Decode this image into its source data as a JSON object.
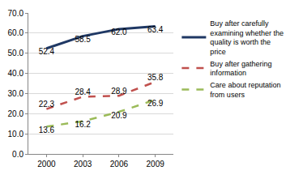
{
  "chart_data": {
    "type": "line",
    "categories": [
      "2000",
      "2003",
      "2006",
      "2009"
    ],
    "series": [
      {
        "name": "Buy after carefully examining whether the quality is worth the price",
        "color": "#1f3864",
        "line_style": "solid",
        "values": [
          52.4,
          58.5,
          62.0,
          63.4
        ],
        "value_labels": [
          "52.4",
          "58.5",
          "62.0",
          "63.4"
        ]
      },
      {
        "name": "Buy after gathering information",
        "color": "#c0504d",
        "line_style": "dash",
        "values": [
          22.3,
          28.4,
          28.9,
          35.8
        ],
        "value_labels": [
          "22.3",
          "28.4",
          "28.9",
          "35.8"
        ]
      },
      {
        "name": "Care about reputation from users",
        "color": "#9bbb59",
        "line_style": "dash",
        "values": [
          13.6,
          16.2,
          20.9,
          26.9
        ],
        "value_labels": [
          "13.6",
          "16.2",
          "20.9",
          "26.9"
        ]
      }
    ],
    "ylim": [
      0,
      70
    ],
    "yticks": [
      {
        "value": 0,
        "label": "0.0"
      },
      {
        "value": 10,
        "label": "10.0"
      },
      {
        "value": 20,
        "label": "20.0"
      },
      {
        "value": 30,
        "label": "30.0"
      },
      {
        "value": 40,
        "label": "40.0"
      },
      {
        "value": 50,
        "label": "50.0"
      },
      {
        "value": 60,
        "label": "60.0"
      },
      {
        "value": 70,
        "label": "70.0"
      }
    ],
    "grid": true,
    "data_labels": true,
    "legend": "right"
  }
}
